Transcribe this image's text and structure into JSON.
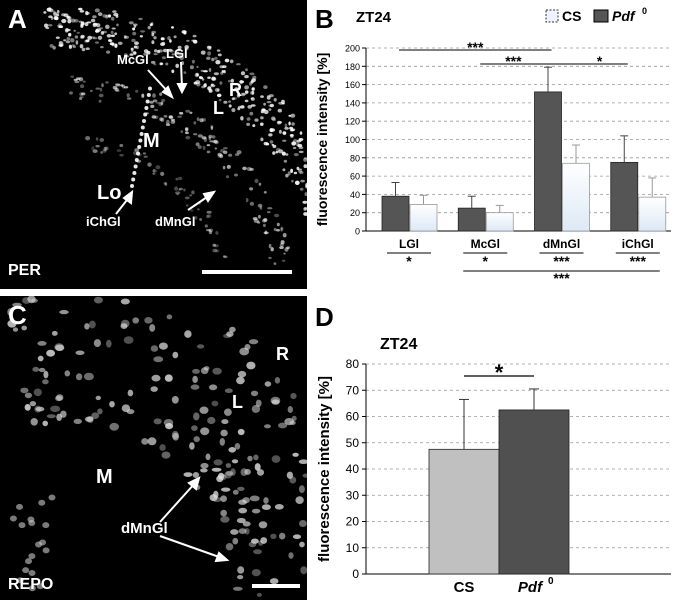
{
  "panels": {
    "a": {
      "label": "A",
      "stain": "PER",
      "regions": {
        "r": "R",
        "l": "L",
        "m": "M",
        "lo": "Lo"
      },
      "cell_labels": {
        "mcgl": "McGl",
        "lgl": "LGl",
        "ichgl": "iChGl",
        "dmngl": "dMnGl"
      }
    },
    "b": {
      "label": "B",
      "timepoint": "ZT24",
      "legend": {
        "cs": "CS",
        "pdf_base": "Pdf",
        "pdf_sup": "0"
      },
      "significance": {
        "sig_top_1": "***",
        "sig_top_2": "***",
        "sig_top_3": "*",
        "sig_bottom_lgl": "*",
        "sig_bottom_mcgl": "*",
        "sig_bottom_dmngl": "***",
        "sig_bottom_ichgl": "***",
        "sig_bottom_wide": "***"
      }
    },
    "c": {
      "label": "C",
      "stain": "REPO",
      "regions": {
        "r": "R",
        "l": "L",
        "m": "M"
      },
      "cell_labels": {
        "dmngl": "dMnGl"
      }
    },
    "d": {
      "label": "D",
      "timepoint": "ZT24",
      "significance": {
        "sig": "*"
      },
      "xlabel_cs": "CS",
      "xlabel_pdf_base": "Pdf",
      "xlabel_pdf_sup": "0"
    }
  },
  "chart_data": [
    {
      "type": "bar",
      "panel": "B",
      "title": "ZT24",
      "ylabel": "fluorescence intensity [%]",
      "ylim": [
        0,
        200
      ],
      "yticks": [
        "0",
        "20",
        "40",
        "60",
        "80",
        "100",
        "120",
        "140",
        "160",
        "180",
        "200"
      ],
      "grid": true,
      "legend_position": "top-right",
      "categories": [
        "LGl",
        "McGl",
        "dMnGl",
        "iChGl"
      ],
      "series": [
        {
          "name": "Pdf0",
          "color": "#555555",
          "values": [
            38,
            25,
            152,
            75
          ],
          "errors": [
            15,
            13,
            27,
            29
          ]
        },
        {
          "name": "CS",
          "color": "#eef4fb",
          "values": [
            29,
            20,
            74,
            37
          ],
          "errors": [
            10,
            8,
            20,
            21
          ]
        }
      ]
    },
    {
      "type": "bar",
      "panel": "D",
      "title": "ZT24",
      "ylabel": "fluorescence intensity [%]",
      "ylim": [
        0,
        80
      ],
      "yticks": [
        "0",
        "10",
        "20",
        "30",
        "40",
        "50",
        "60",
        "70",
        "80"
      ],
      "grid": true,
      "categories": [
        "CS",
        "Pdf0"
      ],
      "values": [
        47.5,
        62.5
      ],
      "errors": [
        19,
        8
      ],
      "colors": [
        "#c0c0c0",
        "#505050"
      ]
    }
  ]
}
